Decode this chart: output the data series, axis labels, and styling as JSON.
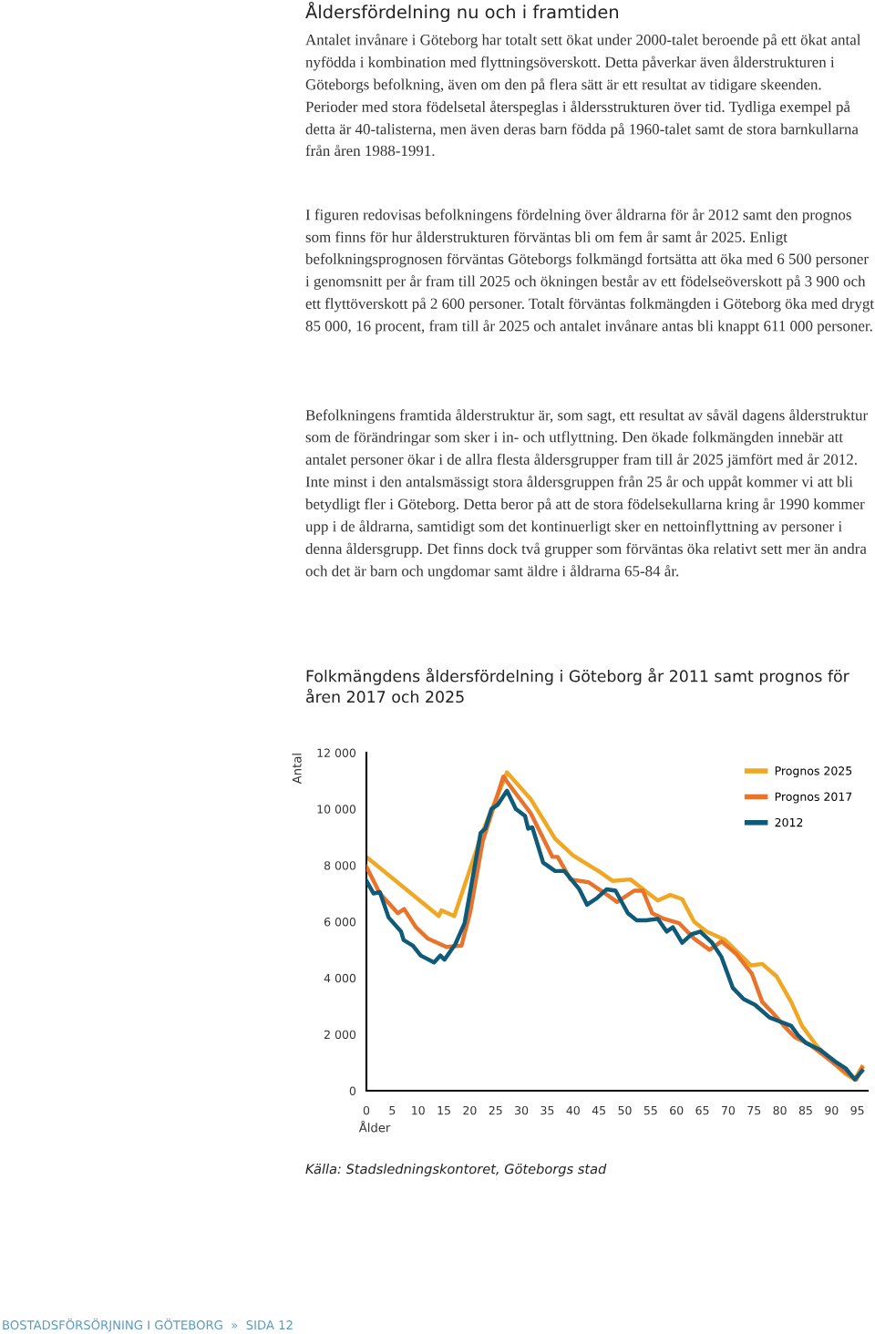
{
  "chart_data": {
    "type": "line",
    "title": "Folkmängdens åldersfördelning i Göteborg år 2011 samt prognos för åren 2017 och 2025",
    "xlabel": "Ålder",
    "ylabel": "Antal",
    "annotations": [
      "Åldersfördelning nu och i framtiden",
      "Antalet invånare i Göteborg har totalt sett ökat under 2000-talet beroende på ett ökat antal nyfödda i kombination med flyttningsöverskott. Detta påverkar även ålderstrukturen i Göteborgs befolkning, även om den på flera sätt är ett resultat av tidigare skeenden. Perioder med stora födelsetal återspeglas i åldersstrukturen över tid. Tydliga exempel på detta är 40-talisterna, men även deras barn födda på 1960-talet samt de stora barnkullarna från åren 1988-1991.",
      "I figuren redovisas befolkningens fördelning över åldrarna för år 2012 samt den prognos som finns för hur ålderstrukturen förväntas bli om fem år samt år 2025. Enligt befolkningsprognosen förväntas Göteborgs folkmängd fortsätta att öka med 6 500 personer i genomsnitt per år fram till 2025 och ökningen består av ett födelseöverskott på 3 900 och ett flyttöverskott på 2 600 personer. Totalt förväntas folkmängden i Göteborg öka med drygt 85 000, 16 procent, fram till år 2025 och antalet invånare antas bli knappt 611 000 personer.",
      "Befolkningens framtida ålderstruktur är, som sagt, ett resultat av såväl dagens ålderstruktur som de förändringar som sker i in- och utflyttning. Den ökade folkmängden innebär att antalet personer ökar i de allra flesta åldersgrupper fram till år 2025 jämfört med år 2012. Inte minst i den antalsmässigt stora åldersgruppen från 25 år och uppåt kommer vi att bli betydligt fler i Göteborg. Detta beror på att de stora födelsekullarna kring år 1990 kommer upp i de åldrarna, samtidigt som det kontinuerligt sker en nettoinflyttning av personer i denna åldersgrupp. Det finns dock två grupper som förväntas öka relativt sett mer än andra och det är barn och ungdomar samt äldre i åldrarna 65-84 år.",
      "Källa: Stadsledningskontoret, Göteborgs stad",
      "BOSTADSFÖRSÖRJNING I GÖTEBORG  »  SIDA 12"
    ],
    "xlim": [
      0,
      97
    ],
    "xticks": [
      0,
      5,
      10,
      15,
      20,
      25,
      30,
      35,
      40,
      45,
      50,
      55,
      60,
      65,
      70,
      75,
      80,
      85,
      90,
      95
    ],
    "ylim": [
      0,
      12000
    ],
    "yticks": [
      {
        "value": 0,
        "label": "0"
      },
      {
        "value": 2000,
        "label": "2 000"
      },
      {
        "value": 4000,
        "label": "4 000"
      },
      {
        "value": 6000,
        "label": "6 000"
      },
      {
        "value": 8000,
        "label": "8 000"
      },
      {
        "value": 10000,
        "label": "10 000"
      },
      {
        "value": 12000,
        "label": "12 000"
      }
    ],
    "grid": false,
    "legend": "top right",
    "marker": "none",
    "line_style": "solid",
    "series": [
      {
        "name": "Prognos 2025",
        "color": "#f0a824",
        "x": [
          0,
          14,
          14.5,
          17,
          22.5,
          27.2,
          31.8,
          36.5,
          40,
          45.3,
          47.6,
          51.1,
          54.6,
          56.4,
          58.8,
          61.1,
          63.4,
          65.8,
          69.4,
          72.2,
          74.4,
          76.6,
          79.4,
          82.2,
          84.3,
          87.1,
          90.6,
          92.7,
          94.5,
          95.9
        ],
        "values": [
          8300,
          6200,
          6400,
          6200,
          9200,
          11300,
          10350,
          8950,
          8350,
          7750,
          7450,
          7500,
          7000,
          6750,
          6950,
          6800,
          6000,
          5650,
          5350,
          4850,
          4450,
          4500,
          4050,
          3150,
          2300,
          1600,
          950,
          600,
          400,
          850
        ]
      },
      {
        "name": "Prognos 2017",
        "color": "#e8732c",
        "x": [
          0,
          2.6,
          6.1,
          7.3,
          9.6,
          11.9,
          14.3,
          15.5,
          18.4,
          20.1,
          22.5,
          26.5,
          28.3,
          31.8,
          36,
          37,
          39.5,
          43,
          47,
          48.5,
          51.8,
          53.5,
          55.3,
          57.6,
          60.5,
          63.4,
          66.4,
          68.7,
          71.6,
          74.6,
          76.6,
          78.7,
          80.8,
          82.9,
          85.7,
          88.5,
          92,
          94.8,
          95.9
        ],
        "values": [
          7950,
          7000,
          6300,
          6450,
          5800,
          5400,
          5200,
          5100,
          5150,
          6350,
          8850,
          11150,
          10700,
          9850,
          8300,
          8300,
          7500,
          7400,
          6900,
          6700,
          7100,
          7100,
          6300,
          6100,
          5950,
          5400,
          5000,
          5300,
          4850,
          4150,
          3150,
          2750,
          2300,
          1900,
          1650,
          1250,
          750,
          400,
          800
        ]
      },
      {
        "name": "2012",
        "color": "#0f5a78",
        "x": [
          0,
          1.4,
          2.6,
          4.3,
          6.7,
          7.2,
          9,
          10.5,
          13.1,
          14.3,
          15.1,
          17.2,
          19,
          22.1,
          23,
          24.2,
          25.4,
          27.2,
          28.9,
          30.7,
          31.3,
          32.1,
          34.2,
          36.5,
          38.3,
          41.2,
          42.7,
          44.7,
          46.5,
          48.2,
          50.6,
          52.3,
          54.1,
          56.4,
          58.1,
          59.3,
          61.1,
          62.9,
          64.6,
          66.9,
          68.7,
          69.9,
          70.9,
          73,
          75.2,
          78,
          80.1,
          82.2,
          83.6,
          85,
          87.8,
          90.6,
          92.7,
          94.5,
          95.9
        ],
        "values": [
          7450,
          7000,
          7050,
          6150,
          5650,
          5350,
          5150,
          4800,
          4550,
          4800,
          4650,
          5200,
          5950,
          9150,
          9300,
          10000,
          10150,
          10650,
          10000,
          9750,
          9300,
          9350,
          8100,
          7800,
          7800,
          7150,
          6600,
          6850,
          7150,
          7100,
          6300,
          6050,
          6050,
          6100,
          5650,
          5800,
          5250,
          5550,
          5650,
          5250,
          4750,
          4150,
          3650,
          3250,
          3050,
          2600,
          2450,
          2300,
          1950,
          1700,
          1450,
          1050,
          800,
          400,
          700
        ]
      }
    ]
  }
}
